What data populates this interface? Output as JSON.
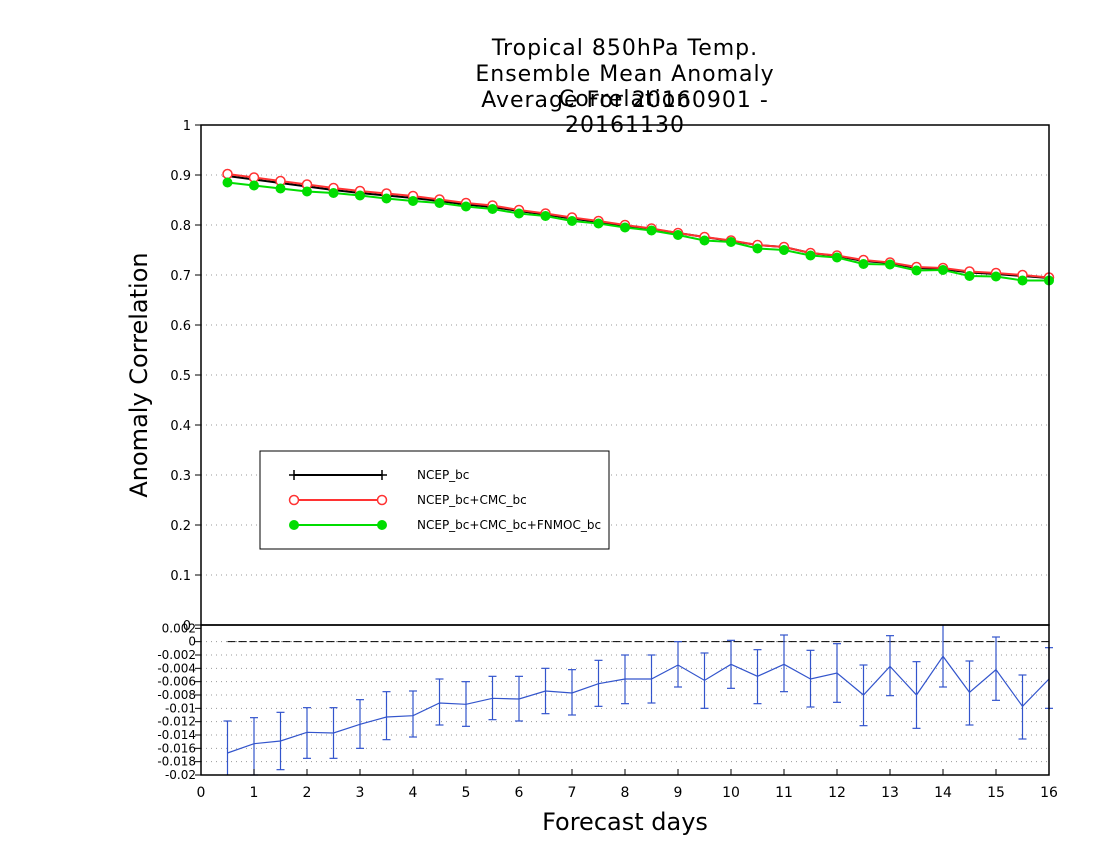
{
  "chart_data": [
    {
      "type": "line",
      "title_lines": [
        "Tropical 850hPa Temp.",
        "Ensemble Mean Anomaly Correlation",
        "Average For 20160901 - 20161130"
      ],
      "xlabel": "Forecast days",
      "ylabel": "Anomaly Correlation",
      "xlim": [
        0,
        16
      ],
      "ylim": [
        0,
        1
      ],
      "x_ticks": [
        "0",
        "1",
        "2",
        "3",
        "4",
        "5",
        "6",
        "7",
        "8",
        "9",
        "10",
        "11",
        "12",
        "13",
        "14",
        "15",
        "16"
      ],
      "y_ticks": [
        "0",
        "0.1",
        "0.2",
        "0.3",
        "0.4",
        "0.5",
        "0.6",
        "0.7",
        "0.8",
        "0.9",
        "1"
      ],
      "grid": "dotted horizontal",
      "legend": "lower-left",
      "x": [
        0.5,
        1,
        1.5,
        2,
        2.5,
        3,
        3.5,
        4,
        4.5,
        5,
        5.5,
        6,
        6.5,
        7,
        7.5,
        8,
        8.5,
        9,
        9.5,
        10,
        10.5,
        11,
        11.5,
        12,
        12.5,
        13,
        13.5,
        14,
        14.5,
        15,
        15.5,
        16
      ],
      "series": [
        {
          "name": "NCEP_bc",
          "color": "#000000",
          "marker": "plus",
          "values": [
            0.898,
            0.891,
            0.884,
            0.877,
            0.87,
            0.864,
            0.859,
            0.854,
            0.848,
            0.841,
            0.836,
            0.828,
            0.821,
            0.813,
            0.806,
            0.798,
            0.792,
            0.784,
            0.776,
            0.768,
            0.76,
            0.756,
            0.744,
            0.738,
            0.728,
            0.724,
            0.714,
            0.712,
            0.705,
            0.702,
            0.698,
            0.694
          ]
        },
        {
          "name": "NCEP_bc+CMC_bc",
          "color": "#ff3333",
          "marker": "open-circle",
          "values": [
            0.902,
            0.895,
            0.888,
            0.881,
            0.874,
            0.868,
            0.863,
            0.858,
            0.851,
            0.844,
            0.839,
            0.83,
            0.823,
            0.815,
            0.808,
            0.8,
            0.793,
            0.784,
            0.776,
            0.769,
            0.76,
            0.756,
            0.744,
            0.739,
            0.73,
            0.725,
            0.716,
            0.714,
            0.707,
            0.704,
            0.7,
            0.695
          ]
        },
        {
          "name": "NCEP_bc+CMC_bc+FNMOC_bc",
          "color": "#00dd00",
          "marker": "filled-circle",
          "values": [
            0.885,
            0.879,
            0.873,
            0.867,
            0.864,
            0.859,
            0.853,
            0.848,
            0.844,
            0.837,
            0.832,
            0.823,
            0.818,
            0.808,
            0.803,
            0.795,
            0.789,
            0.78,
            0.769,
            0.766,
            0.753,
            0.75,
            0.739,
            0.735,
            0.722,
            0.721,
            0.709,
            0.71,
            0.698,
            0.697,
            0.689,
            0.689
          ]
        }
      ]
    },
    {
      "type": "line",
      "ylim": [
        -0.02,
        0.0025
      ],
      "y_ticks": [
        "0.002",
        "0",
        "-0.002",
        "-0.004",
        "-0.006",
        "-0.008",
        "-0.01",
        "-0.012",
        "-0.014",
        "-0.016",
        "-0.018",
        "-0.02"
      ],
      "zero_line": 0,
      "grid": "dotted horizontal",
      "error_bars": true,
      "x": [
        0.5,
        1,
        1.5,
        2,
        2.5,
        3,
        3.5,
        4,
        4.5,
        5,
        5.5,
        6,
        6.5,
        7,
        7.5,
        8,
        8.5,
        9,
        9.5,
        10,
        10.5,
        11,
        11.5,
        12,
        12.5,
        13,
        13.5,
        14,
        14.5,
        15,
        15.5,
        16
      ],
      "series": [
        {
          "name": "",
          "color": "#3355cc",
          "values": [
            -0.0167,
            -0.0153,
            -0.0149,
            -0.0136,
            -0.0137,
            -0.0124,
            -0.0113,
            -0.0111,
            -0.0092,
            -0.0094,
            -0.0085,
            -0.0086,
            -0.0074,
            -0.0077,
            -0.0063,
            -0.0056,
            -0.0056,
            -0.0035,
            -0.0058,
            -0.0034,
            -0.0052,
            -0.0034,
            -0.0056,
            -0.0047,
            -0.008,
            -0.0037,
            -0.008,
            -0.0022,
            -0.0076,
            -0.0042,
            -0.0097,
            -0.0056
          ],
          "lower": [
            -0.0225,
            -0.02,
            -0.0192,
            -0.0175,
            -0.0175,
            -0.016,
            -0.0147,
            -0.0143,
            -0.0125,
            -0.0127,
            -0.0117,
            -0.0119,
            -0.0108,
            -0.011,
            -0.0097,
            -0.0093,
            -0.0092,
            -0.0068,
            -0.01,
            -0.007,
            -0.0093,
            -0.0075,
            -0.0098,
            -0.0091,
            -0.0126,
            -0.0081,
            -0.013,
            -0.0068,
            -0.0125,
            -0.0088,
            -0.0146,
            -0.01
          ],
          "upper": [
            -0.0119,
            -0.0114,
            -0.0106,
            -0.0099,
            -0.0099,
            -0.0087,
            -0.0075,
            -0.0074,
            -0.0056,
            -0.006,
            -0.0052,
            -0.0052,
            -0.004,
            -0.0042,
            -0.0028,
            -0.002,
            -0.002,
            0.0,
            -0.0017,
            0.0002,
            -0.0012,
            0.001,
            -0.0013,
            -0.0003,
            -0.0035,
            0.0009,
            -0.003,
            0.0027,
            -0.0029,
            0.0007,
            -0.005,
            -0.0009
          ]
        }
      ]
    }
  ]
}
